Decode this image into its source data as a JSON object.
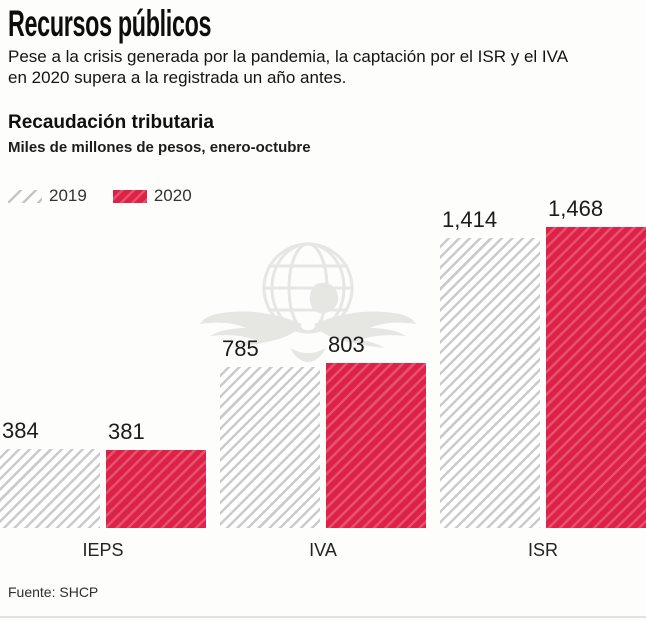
{
  "header": {
    "title": "Recursos públicos",
    "subtitle_lines": [
      "Pese a la crisis generada por la pandemia, la captación por el ISR y el IVA",
      "en 2020 supera a la registrada un año antes."
    ]
  },
  "chart_header": {
    "title": "Recaudación tributaria",
    "subtitle": "Miles de millones de pesos, enero-octubre"
  },
  "legend": {
    "items": [
      {
        "label": "2019",
        "swatch": "gray-diagonal-hatch"
      },
      {
        "label": "2020",
        "swatch": "red-diagonal-hatch"
      }
    ]
  },
  "source": "Fuente: SHCP",
  "colors": {
    "accent_red": "#de2247",
    "hatch_gray": "#cbcbcb",
    "text": "#111111",
    "watermark_gray": "#e6e6e3"
  },
  "watermark": "winged-globe-watermark",
  "chart_data": {
    "type": "bar",
    "categories": [
      "IEPS",
      "IVA",
      "ISR"
    ],
    "series": [
      {
        "name": "2019",
        "style": "gray-hatch",
        "values": [
          384,
          785,
          1414
        ],
        "labels": [
          "384",
          "785",
          "1,414"
        ]
      },
      {
        "name": "2020",
        "style": "red-hatch",
        "values": [
          381,
          803,
          1468
        ],
        "labels": [
          "381",
          "803",
          "1,468"
        ]
      }
    ],
    "title": "Recaudación tributaria",
    "xlabel": "",
    "ylabel": "Miles de millones de pesos",
    "ylim": [
      0,
      1468
    ],
    "grid": false,
    "axes_shown": false,
    "legend_position": "top-left",
    "value_labels": true
  }
}
